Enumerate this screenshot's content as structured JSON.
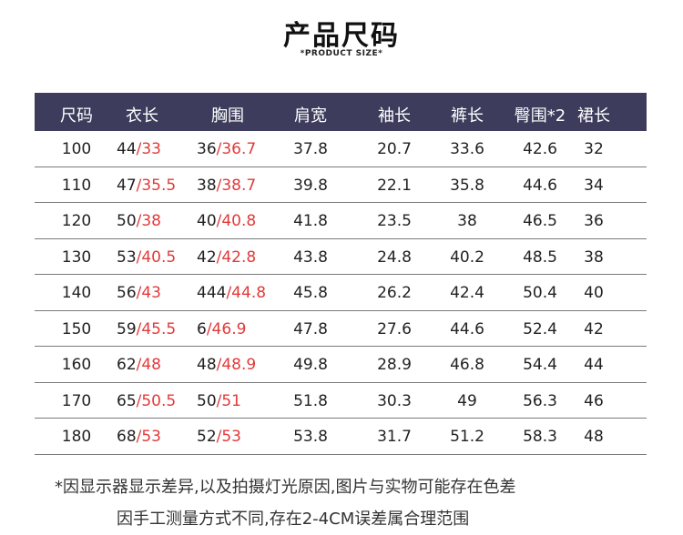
{
  "header": {
    "title": "产品尺码",
    "subtitle": "*PRODUCT SIZE*"
  },
  "table": {
    "columns": [
      "尺码",
      "衣长",
      "胸围",
      "肩宽",
      "袖长",
      "裤长",
      "臀围*2",
      "裙长"
    ],
    "rows": [
      {
        "size": "100",
        "len_a": "44",
        "len_b": "/33",
        "chest_a": "36",
        "chest_b": "/36.7",
        "shoulder": "37.8",
        "sleeve": "20.7",
        "pants": "33.6",
        "hip": "42.6",
        "skirt": "32"
      },
      {
        "size": "110",
        "len_a": "47",
        "len_b": "/35.5",
        "chest_a": "38",
        "chest_b": "/38.7",
        "shoulder": "39.8",
        "sleeve": "22.1",
        "pants": "35.8",
        "hip": "44.6",
        "skirt": "34"
      },
      {
        "size": "120",
        "len_a": "50",
        "len_b": "/38",
        "chest_a": "40",
        "chest_b": "/40.8",
        "shoulder": "41.8",
        "sleeve": "23.5",
        "pants": "38",
        "hip": "46.5",
        "skirt": "36"
      },
      {
        "size": "130",
        "len_a": "53",
        "len_b": "/40.5",
        "chest_a": "42",
        "chest_b": "/42.8",
        "shoulder": "43.8",
        "sleeve": "24.8",
        "pants": "40.2",
        "hip": "48.5",
        "skirt": "38"
      },
      {
        "size": "140",
        "len_a": "56",
        "len_b": "/43",
        "chest_a": "444",
        "chest_b": "/44.8",
        "shoulder": "45.8",
        "sleeve": "26.2",
        "pants": "42.4",
        "hip": "50.4",
        "skirt": "40"
      },
      {
        "size": "150",
        "len_a": "59",
        "len_b": "/45.5",
        "chest_a": "6",
        "chest_b": "/46.9",
        "shoulder": "47.8",
        "sleeve": "27.6",
        "pants": "44.6",
        "hip": "52.4",
        "skirt": "42"
      },
      {
        "size": "160",
        "len_a": "62",
        "len_b": "/48",
        "chest_a": "48",
        "chest_b": "/48.9",
        "shoulder": "49.8",
        "sleeve": "28.9",
        "pants": "46.8",
        "hip": "54.4",
        "skirt": "44"
      },
      {
        "size": "170",
        "len_a": "65",
        "len_b": "/50.5",
        "chest_a": "50",
        "chest_b": "/51",
        "shoulder": "51.8",
        "sleeve": "30.3",
        "pants": "49",
        "hip": "56.3",
        "skirt": "46"
      },
      {
        "size": "180",
        "len_a": "68",
        "len_b": "/53",
        "chest_a": "52",
        "chest_b": "/53",
        "shoulder": "53.8",
        "sleeve": "31.7",
        "pants": "51.2",
        "hip": "58.3",
        "skirt": "48"
      }
    ]
  },
  "notes": {
    "line1": "*因显示器显示差异,以及拍摄灯光原因,图片与实物可能存在色差",
    "line2": "因手工测量方式不同,存在2-4CM误差属合理范围"
  },
  "colors": {
    "header_bg": "#3d3c5c",
    "accent": "#e23a3a"
  }
}
